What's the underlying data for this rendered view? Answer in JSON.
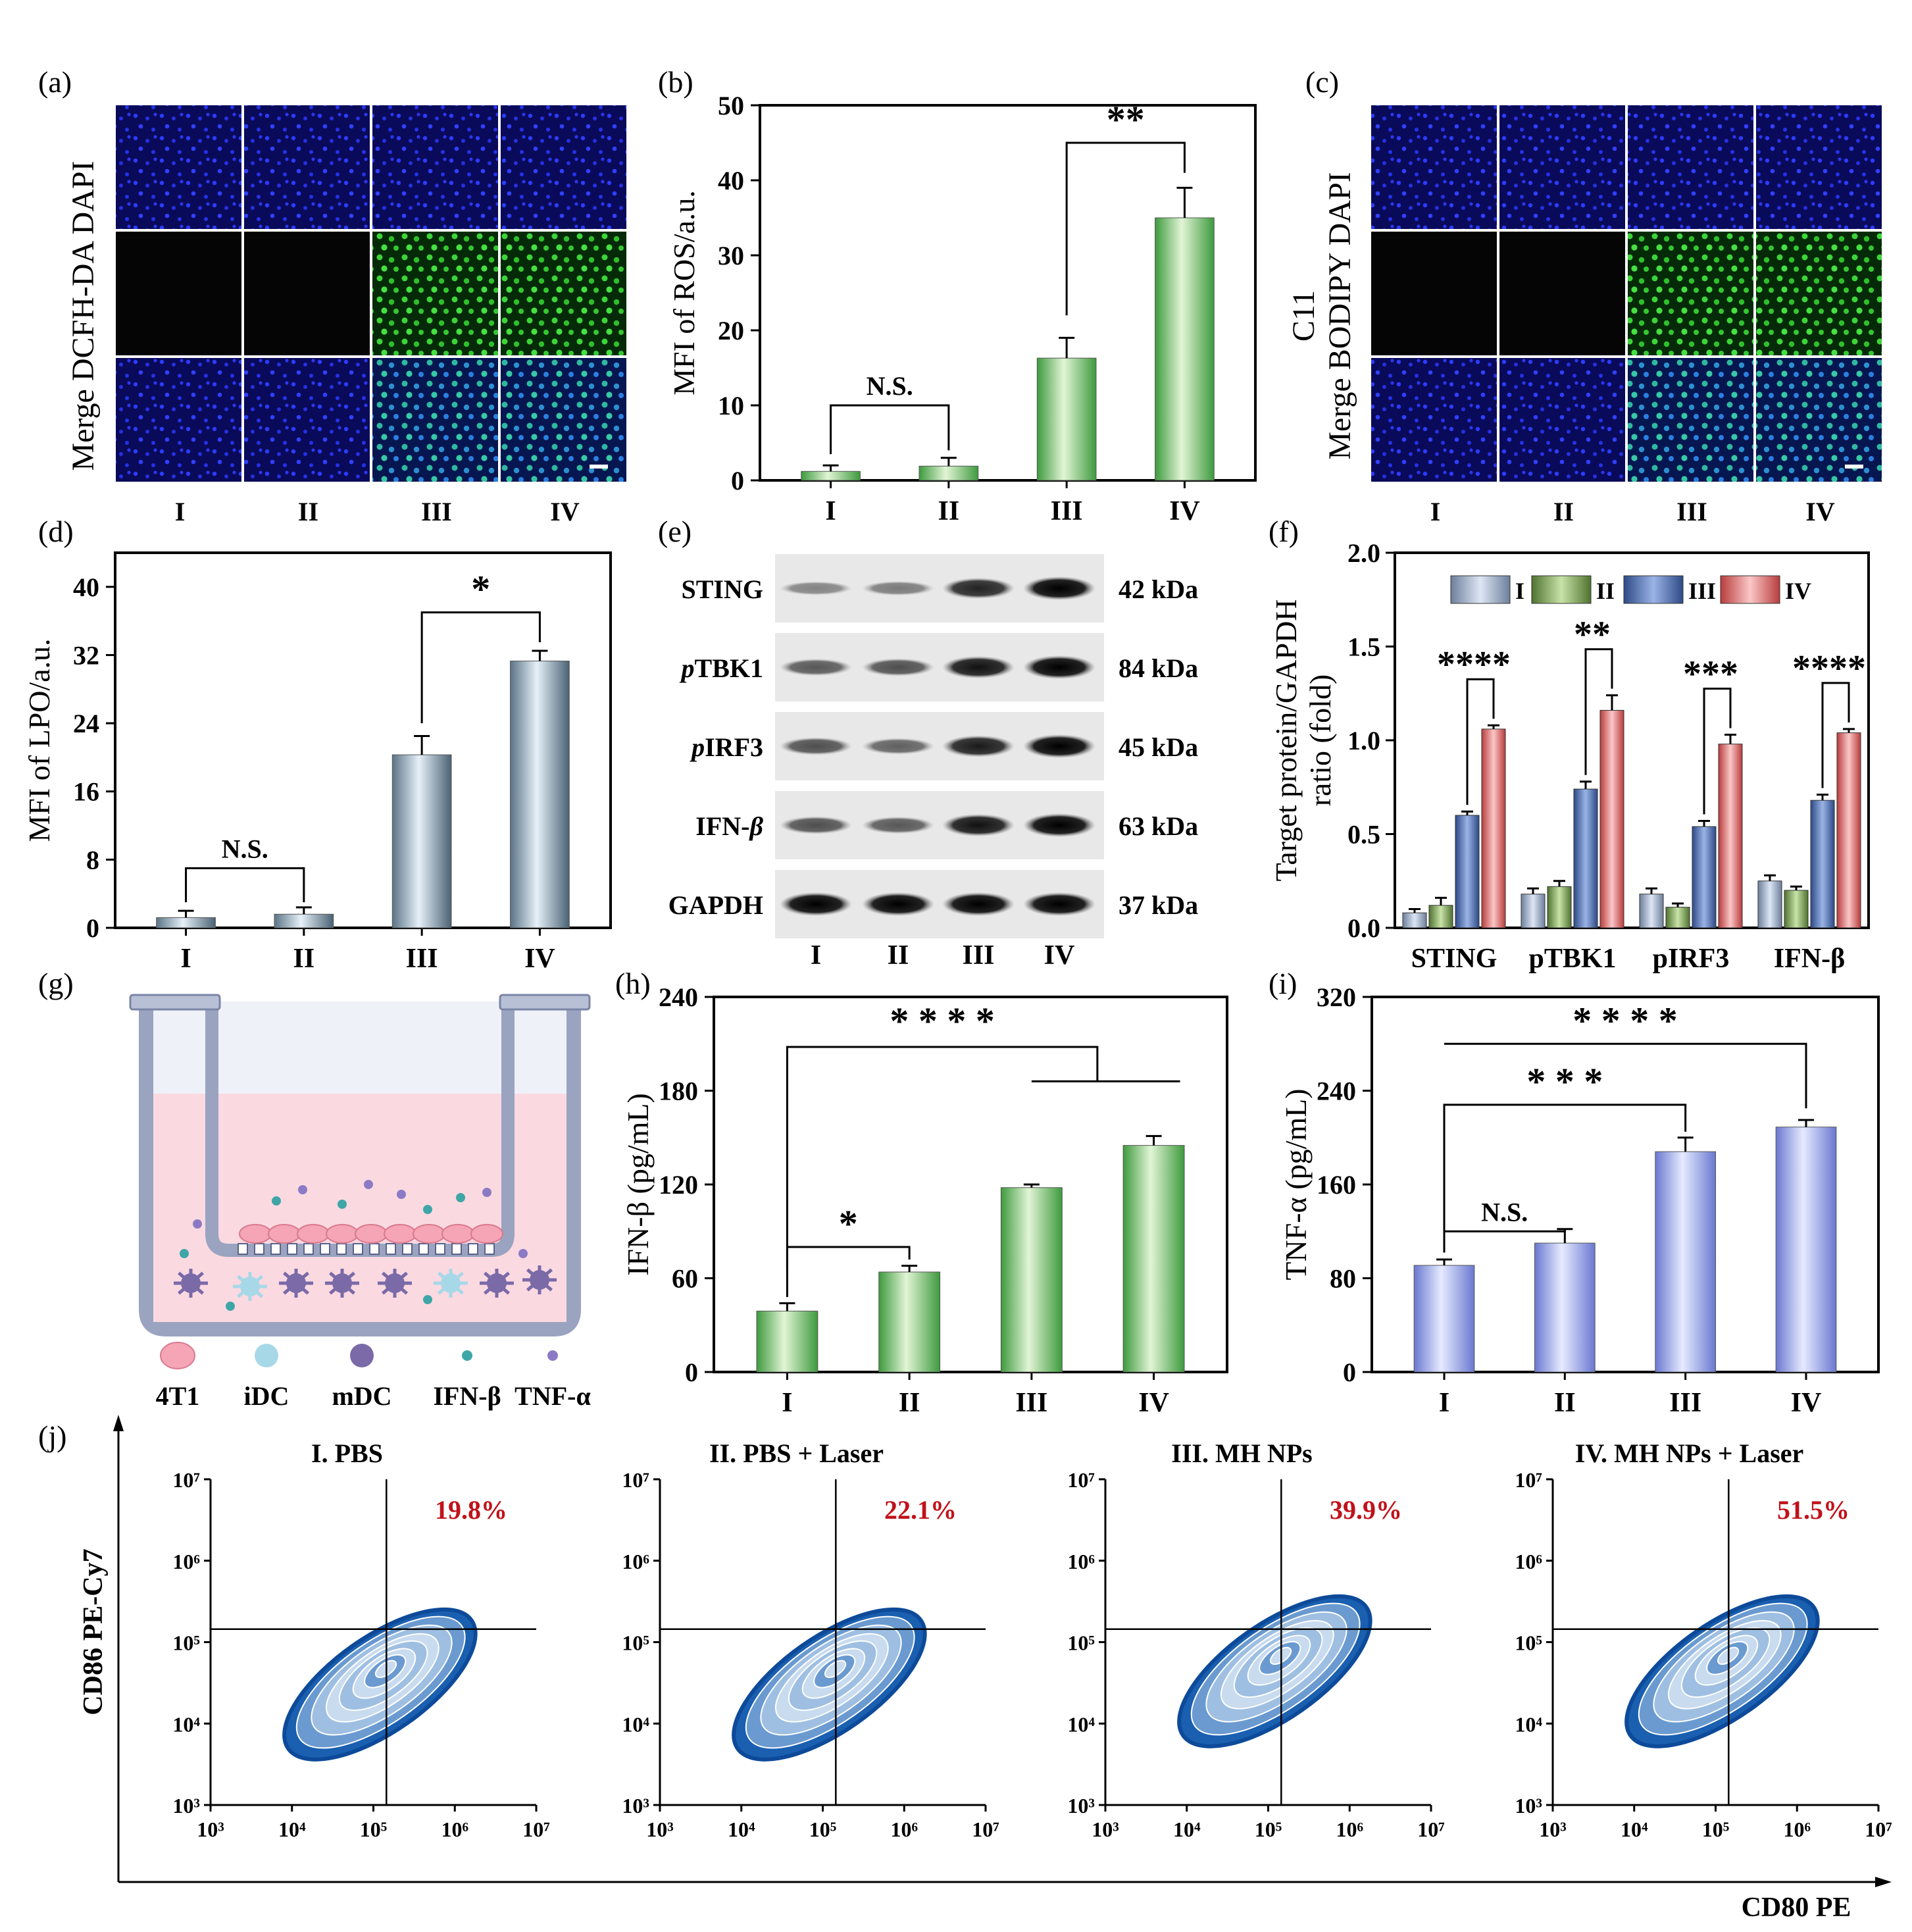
{
  "panel_labels": {
    "a": "(a)",
    "b": "(b)",
    "c": "(c)",
    "d": "(d)",
    "e": "(e)",
    "f": "(f)",
    "g": "(g)",
    "h": "(h)",
    "i": "(i)",
    "j": "(j)"
  },
  "groups": [
    "I",
    "II",
    "III",
    "IV"
  ],
  "micro_a": {
    "ylabel": "Merge DCFH-DA DAPI"
  },
  "micro_c": {
    "ylabel1": "C11",
    "ylabel2": "Merge BODIPY DAPI"
  },
  "colors": {
    "dapi_blue": "#1a1adc",
    "green": "#39c43a",
    "merge": "#2aa5a0",
    "bar_green": "#7dc97a",
    "bar_steel": "#a9c1d2",
    "bar_blue": "#7d8ee0",
    "f_I": "#b8c6dc",
    "f_II": "#7fa35a",
    "f_III": "#4d6fb0",
    "f_IV": "#e36b6b"
  },
  "western": {
    "rows": [
      {
        "name": "STING",
        "kda": "42 kDa"
      },
      {
        "prefix": "p",
        "name": "TBK1",
        "kda": "84 kDa"
      },
      {
        "prefix": "p",
        "name": "IRF3",
        "kda": "45 kDa"
      },
      {
        "name": "IFN-",
        "italic_suffix": "β",
        "kda": "63 kDa"
      },
      {
        "name": "GAPDH",
        "kda": "37 kDa"
      }
    ],
    "band_intensity": [
      [
        0.25,
        0.3,
        0.8,
        1.0
      ],
      [
        0.5,
        0.55,
        0.9,
        1.0
      ],
      [
        0.55,
        0.45,
        0.85,
        1.0
      ],
      [
        0.55,
        0.5,
        0.9,
        1.0
      ],
      [
        1.0,
        1.0,
        1.0,
        1.0
      ]
    ]
  },
  "transwell": {
    "legend": [
      "4T1",
      "iDC",
      "mDC",
      "IFN-β",
      "TNF-α"
    ]
  },
  "flow": {
    "x_axis_label": "CD80 PE",
    "y_axis_label": "CD86 PE-Cy7",
    "tick_labels": [
      "10³",
      "10⁴",
      "10⁵",
      "10⁶",
      "10⁷"
    ],
    "panels": [
      {
        "title": "I. PBS",
        "percent": "19.8%"
      },
      {
        "title": "II. PBS + Laser",
        "percent": "22.1%"
      },
      {
        "title": "III. MH NPs",
        "percent": "39.9%"
      },
      {
        "title": "IV. MH NPs + Laser",
        "percent": "51.5%"
      }
    ]
  },
  "chart_data": [
    {
      "id": "b",
      "type": "bar",
      "categories": [
        "I",
        "II",
        "III",
        "IV"
      ],
      "values": [
        1.2,
        1.9,
        16.3,
        35.0
      ],
      "errors": [
        0.8,
        1.1,
        2.7,
        4.0
      ],
      "ylabel": "MFI of ROS/a.u.",
      "ylim": [
        0,
        50
      ],
      "yticks": [
        "0",
        "10",
        "20",
        "30",
        "40",
        "50"
      ],
      "annotations": [
        {
          "text": "N.S.",
          "from": 0,
          "to": 1
        },
        {
          "text": "**",
          "from": 2,
          "to": 3
        }
      ]
    },
    {
      "id": "d",
      "type": "bar",
      "categories": [
        "I",
        "II",
        "III",
        "IV"
      ],
      "values": [
        1.2,
        1.6,
        20.3,
        31.3
      ],
      "errors": [
        0.8,
        0.8,
        2.2,
        1.2
      ],
      "ylabel": "MFI of LPO/a.u.",
      "ylim": [
        0,
        44
      ],
      "yticks": [
        "0",
        "8",
        "16",
        "24",
        "32",
        "40"
      ],
      "annotations": [
        {
          "text": "N.S.",
          "from": 0,
          "to": 1
        },
        {
          "text": "*",
          "from": 2,
          "to": 3
        }
      ]
    },
    {
      "id": "f",
      "type": "bar",
      "categories": [
        "STING",
        "pTBK1",
        "pIRF3",
        "IFN-β"
      ],
      "ylabel": "Target protein/GAPDH ratio (fold)",
      "ylim": [
        0,
        2.0
      ],
      "yticks": [
        "0.0",
        "0.5",
        "1.0",
        "1.5",
        "2.0"
      ],
      "series": [
        {
          "name": "I",
          "values": [
            0.08,
            0.18,
            0.18,
            0.25
          ],
          "errors": [
            0.02,
            0.03,
            0.03,
            0.03
          ]
        },
        {
          "name": "II",
          "values": [
            0.12,
            0.22,
            0.11,
            0.2
          ],
          "errors": [
            0.04,
            0.03,
            0.02,
            0.02
          ]
        },
        {
          "name": "III",
          "values": [
            0.6,
            0.74,
            0.54,
            0.68
          ],
          "errors": [
            0.02,
            0.04,
            0.03,
            0.03
          ]
        },
        {
          "name": "IV",
          "values": [
            1.06,
            1.16,
            0.98,
            1.04
          ],
          "errors": [
            0.02,
            0.08,
            0.05,
            0.02
          ]
        }
      ],
      "annotations": [
        "****",
        "**",
        "***",
        "****"
      ]
    },
    {
      "id": "h",
      "type": "bar",
      "categories": [
        "I",
        "II",
        "III",
        "IV"
      ],
      "values": [
        39,
        64,
        118,
        145
      ],
      "errors": [
        5,
        4,
        2,
        6
      ],
      "ylabel": "IFN-β (pg/mL)",
      "ylim": [
        0,
        240
      ],
      "yticks": [
        "0",
        "60",
        "120",
        "180",
        "240"
      ],
      "annotations": [
        {
          "text": "* * * *"
        },
        {
          "text": "*"
        }
      ]
    },
    {
      "id": "i",
      "type": "bar",
      "categories": [
        "I",
        "II",
        "III",
        "IV"
      ],
      "values": [
        91,
        110,
        188,
        209
      ],
      "errors": [
        5,
        12,
        12,
        6
      ],
      "ylabel": "TNF-α (pg/mL)",
      "ylim": [
        0,
        320
      ],
      "yticks": [
        "0",
        "80",
        "160",
        "240",
        "320"
      ],
      "annotations": [
        {
          "text": "N.S."
        },
        {
          "text": "* * *"
        },
        {
          "text": "* * * *"
        }
      ]
    }
  ]
}
